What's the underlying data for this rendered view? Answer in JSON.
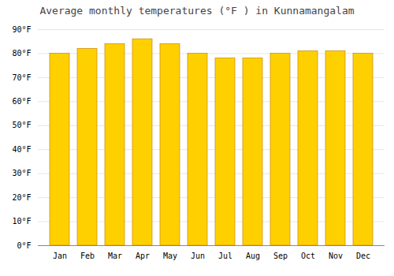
{
  "chart_data": {
    "type": "bar",
    "title": "Average monthly temperatures (°F ) in Kunnamangalam",
    "categories": [
      "Jan",
      "Feb",
      "Mar",
      "Apr",
      "May",
      "Jun",
      "Jul",
      "Aug",
      "Sep",
      "Oct",
      "Nov",
      "Dec"
    ],
    "values": [
      80,
      82,
      84,
      86,
      84,
      80,
      78,
      78,
      80,
      81,
      81,
      80
    ],
    "color": "#FFD000",
    "ylim": [
      0,
      90
    ],
    "yticks": [
      {
        "value": 0,
        "label": "0°F"
      },
      {
        "value": 10,
        "label": "10°F"
      },
      {
        "value": 20,
        "label": "20°F"
      },
      {
        "value": 30,
        "label": "30°F"
      },
      {
        "value": 40,
        "label": "40°F"
      },
      {
        "value": 50,
        "label": "50°F"
      },
      {
        "value": 60,
        "label": "60°F"
      },
      {
        "value": 70,
        "label": "70°F"
      },
      {
        "value": 80,
        "label": "80°F"
      },
      {
        "value": 90,
        "label": "90°F"
      }
    ],
    "grid": true
  }
}
